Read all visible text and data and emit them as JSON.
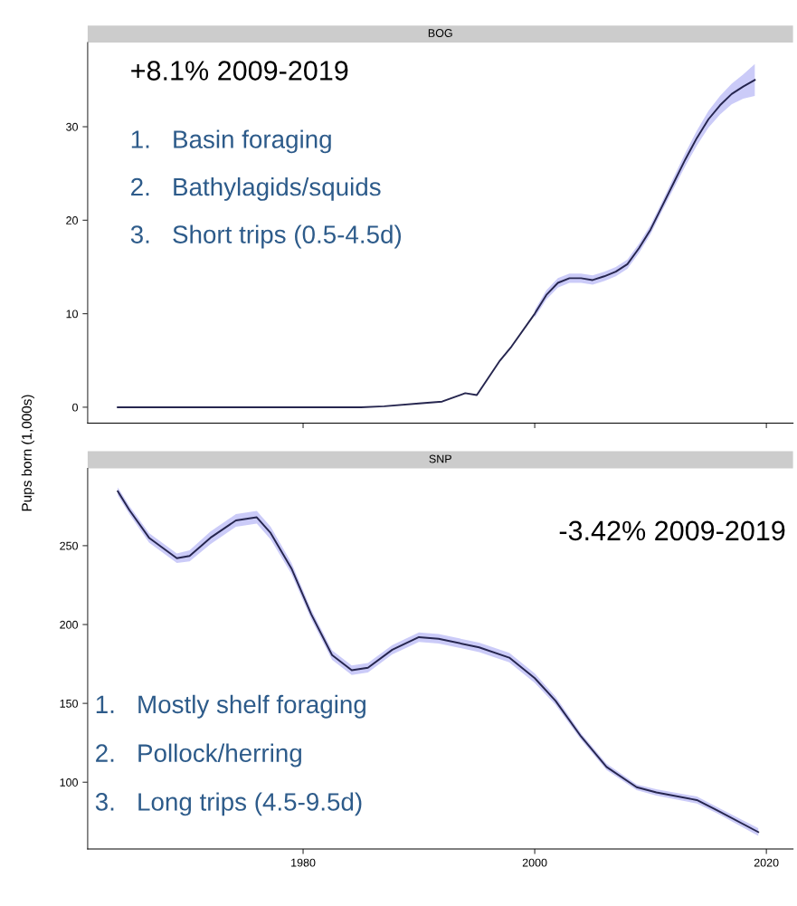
{
  "chart_data": [
    {
      "type": "line",
      "title": "BOG",
      "ylabel": "Pups born (1,000s)",
      "xlim": [
        1961.4,
        2022.3
      ],
      "xticks": [
        1980,
        2000,
        2020
      ],
      "ylim": [
        -1.7,
        39
      ],
      "yticks": [
        0,
        10,
        20,
        30
      ],
      "tick_labels": "y",
      "grid": false,
      "annotations": [
        "+8.1% 2009-2019",
        "1.   Basin foraging",
        "2.   Bathylagids/squids",
        "3.   Short trips (0.5-4.5d)"
      ],
      "series": [
        {
          "color": "#26264f",
          "x": [
            1964,
            1970,
            1975,
            1980,
            1985,
            1987,
            1990,
            1992,
            1994,
            1995,
            1997,
            1998,
            2000,
            2001,
            2002,
            2003,
            2004,
            2005,
            2006,
            2007,
            2008,
            2009,
            2010,
            2011,
            2012,
            2013,
            2014,
            2015,
            2016,
            2017,
            2018,
            2019
          ],
          "values": [
            0,
            0,
            0,
            0,
            0,
            0.1,
            0.4,
            0.6,
            1.5,
            1.3,
            5,
            6.5,
            10,
            12,
            13.3,
            13.8,
            13.8,
            13.6,
            14,
            14.5,
            15.3,
            17,
            19,
            21.5,
            24,
            26.5,
            28.8,
            30.8,
            32.3,
            33.5,
            34.3,
            35
          ],
          "lower": [
            null,
            null,
            null,
            null,
            null,
            null,
            null,
            null,
            null,
            null,
            null,
            null,
            9.6,
            11.5,
            12.8,
            13.3,
            13.3,
            13.1,
            13.5,
            14,
            14.8,
            16.5,
            18.5,
            21,
            23.4,
            25.8,
            28,
            29.9,
            31.3,
            32.4,
            33,
            33.3
          ],
          "upper": [
            null,
            null,
            null,
            null,
            null,
            null,
            null,
            null,
            null,
            null,
            null,
            null,
            10.4,
            12.5,
            13.8,
            14.3,
            14.3,
            14.1,
            14.5,
            15,
            15.8,
            17.5,
            19.5,
            22,
            24.6,
            27.2,
            29.6,
            31.7,
            33.3,
            34.6,
            35.6,
            36.7
          ]
        }
      ]
    },
    {
      "type": "line",
      "title": "SNP",
      "xlim": [
        1961.4,
        2022.3
      ],
      "ylim": [
        57.7,
        299
      ],
      "xticks": [
        1980,
        2000,
        2020
      ],
      "yticks": [
        100,
        150,
        200,
        250
      ],
      "grid": false,
      "annotations": [
        "-3.42% 2009-2019",
        "1.   Mostly shelf foraging",
        "2.   Pollock/herring",
        "3.   Long trips (4.5-9.5d)"
      ],
      "series": [
        {
          "color": "#26264f",
          "x": [
            1964.0,
            1965.0,
            1966.7,
            1969.1,
            1970.2,
            1972.0,
            1974.2,
            1976.0,
            1977.2,
            1979.0,
            1980.7,
            1982.5,
            1984.2,
            1985.6,
            1987.7,
            1990.0,
            1991.7,
            1995.2,
            1997.8,
            2000.0,
            2001.8,
            2004.0,
            2006.2,
            2008.8,
            2010.5,
            2014.0,
            2015.8,
            2019.3
          ],
          "values": [
            284.5,
            272.6,
            255,
            242,
            243.5,
            255,
            266,
            268,
            258,
            235.5,
            206.5,
            180.6,
            171,
            172.6,
            184,
            192,
            191,
            185.5,
            179,
            166,
            151.6,
            129,
            109.7,
            96.8,
            93.5,
            88.7,
            82,
            68.4
          ],
          "lower": [
            282,
            270,
            252,
            239,
            240,
            251,
            262,
            264,
            254,
            232,
            203.5,
            177.6,
            168,
            169.6,
            181,
            189,
            188,
            182.5,
            176,
            163,
            149,
            127,
            107.7,
            95,
            91.5,
            86.5,
            80,
            66
          ],
          "upper": [
            287,
            275.2,
            258,
            245,
            247,
            259,
            270,
            272,
            262,
            239,
            209.5,
            183.6,
            174,
            175.6,
            187,
            195,
            194,
            188.5,
            182,
            169,
            154.2,
            131,
            111.7,
            98.6,
            95.5,
            90.9,
            84,
            70.8
          ]
        }
      ]
    }
  ]
}
